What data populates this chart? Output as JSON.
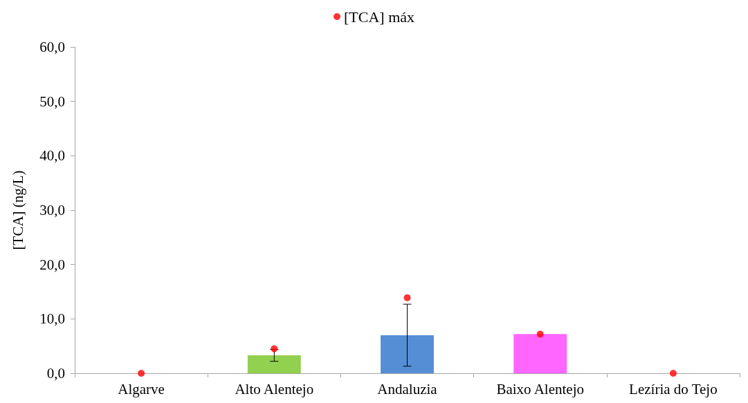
{
  "chart_data": {
    "type": "bar",
    "ylabel": "[TCA] (ng/L)",
    "categories": [
      "Algarve",
      "Alto Alentejo",
      "Andaluzia",
      "Baixo Alentejo",
      "Lezíria do Tejo"
    ],
    "ylim": [
      0,
      60
    ],
    "yticks": [
      {
        "value": 0,
        "label": "0,0"
      },
      {
        "value": 10,
        "label": "10,0"
      },
      {
        "value": 20,
        "label": "20,0"
      },
      {
        "value": 30,
        "label": "30,0"
      },
      {
        "value": 40,
        "label": "40,0"
      },
      {
        "value": 50,
        "label": "50,0"
      },
      {
        "value": 60,
        "label": "60,0"
      }
    ],
    "grid": false,
    "legend": "top",
    "marker": "circle",
    "series": [
      {
        "values": [
          0,
          3.3,
          7.0,
          7.2,
          0
        ],
        "colors": [
          "#92d050",
          "#92d050",
          "#558ed5",
          "#ff66ff",
          "#558ed5"
        ],
        "errors": [
          null,
          1.1,
          5.7,
          null,
          null
        ]
      },
      {
        "type": "scatter",
        "name": "[TCA] máx",
        "color": "#ff0000",
        "values": [
          0,
          4.5,
          13.9,
          7.2,
          0
        ]
      }
    ]
  }
}
